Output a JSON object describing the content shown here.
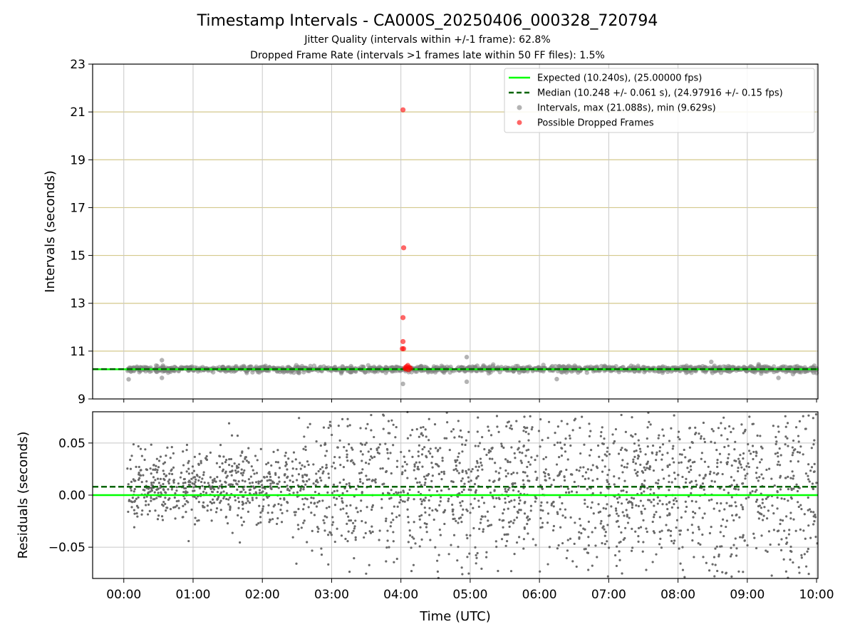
{
  "chart_data": [
    {
      "type": "scatter",
      "title": "Timestamp Intervals - CA000S_20250406_000328_720794",
      "subtitle_lines": [
        "Jitter Quality (intervals within +/-1 frame): 62.8%",
        "Dropped Frame Rate (intervals >1 frames late within 50 FF files): 1.5%"
      ],
      "ylabel": "Intervals (seconds)",
      "xlim_hours": [
        -0.45,
        10.02
      ],
      "ylim": [
        9,
        23
      ],
      "y_ticks": [
        9,
        11,
        13,
        15,
        17,
        19,
        21,
        23
      ],
      "grid": "on",
      "legend_position": "top-right",
      "legend": [
        "Expected (10.240s), (25.00000 fps)",
        "Median (10.248 +/- 0.061 s), (24.97916 +/- 0.15 fps)",
        "Intervals, max (21.088s), min (9.629s)",
        "Possible Dropped Frames"
      ],
      "expected_interval": 10.24,
      "median_interval": 10.248,
      "interval_max": 21.088,
      "interval_min": 9.629,
      "dropped_frame_points": [
        {
          "x": 4.03,
          "y": 21.088
        },
        {
          "x": 4.04,
          "y": 15.32
        },
        {
          "x": 4.03,
          "y": 12.4
        },
        {
          "x": 4.03,
          "y": 11.4
        },
        {
          "x": 4.02,
          "y": 11.1
        },
        {
          "x": 4.04,
          "y": 11.1
        },
        {
          "x": 4.06,
          "y": 10.3
        },
        {
          "x": 4.08,
          "y": 10.35
        },
        {
          "x": 4.1,
          "y": 10.4
        },
        {
          "x": 4.12,
          "y": 10.32
        },
        {
          "x": 4.14,
          "y": 10.28
        },
        {
          "x": 4.07,
          "y": 10.25
        },
        {
          "x": 4.11,
          "y": 10.22
        }
      ],
      "interval_outliers": [
        {
          "x": 0.07,
          "y": 9.82
        },
        {
          "x": 0.55,
          "y": 10.62
        },
        {
          "x": 0.55,
          "y": 9.88
        },
        {
          "x": 4.03,
          "y": 9.629
        },
        {
          "x": 4.95,
          "y": 10.75
        },
        {
          "x": 4.95,
          "y": 9.72
        },
        {
          "x": 6.25,
          "y": 9.83
        },
        {
          "x": 8.48,
          "y": 10.55
        },
        {
          "x": 9.45,
          "y": 9.88
        }
      ],
      "interval_band": {
        "x_start": 0.05,
        "x_end": 10.02,
        "center": 10.248,
        "spread": 0.061
      },
      "colors": {
        "expected": "#00ff00",
        "median": "#006400",
        "intervals": "#808080",
        "dropped": "#ff0000",
        "hgrid": "#d4c98c",
        "vgrid": "#c8c8c8"
      }
    },
    {
      "type": "scatter",
      "ylabel": "Residuals (seconds)",
      "xlabel": "Time (UTC)",
      "xlim_hours": [
        -0.45,
        10.02
      ],
      "ylim": [
        -0.08,
        0.08
      ],
      "y_ticks": [
        -0.05,
        0.0,
        0.05
      ],
      "y_tick_labels": [
        "−0.05",
        "0.00",
        "0.05"
      ],
      "x_ticks": [
        0,
        1,
        2,
        3,
        4,
        5,
        6,
        7,
        8,
        9,
        10
      ],
      "x_tick_labels": [
        "00:00",
        "01:00",
        "02:00",
        "03:00",
        "04:00",
        "05:00",
        "06:00",
        "07:00",
        "08:00",
        "09:00",
        "10:00"
      ],
      "grid": "on",
      "expected_residual": 0.0,
      "median_residual": 0.008,
      "residual_spread": [
        {
          "x_hours": 0.0,
          "sd": 0.016
        },
        {
          "x_hours": 2.5,
          "sd": 0.02
        },
        {
          "x_hours": 3.0,
          "sd": 0.04
        },
        {
          "x_hours": 10.0,
          "sd": 0.048
        }
      ],
      "colors": {
        "expected": "#00ff00",
        "median": "#006400",
        "points": "#696969",
        "grid": "#c8c8c8"
      }
    }
  ]
}
